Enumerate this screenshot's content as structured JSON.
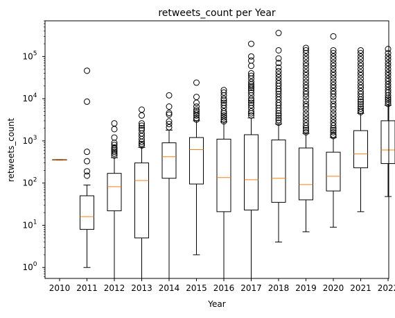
{
  "chart_data": {
    "type": "box",
    "title": "retweets_count per Year",
    "xlabel": "Year",
    "ylabel": "retweets_count",
    "yscale": "log",
    "ylim": [
      0.55,
      700000
    ],
    "y_ticks": [
      {
        "value": 1,
        "base": "10",
        "exp": "0"
      },
      {
        "value": 10,
        "base": "10",
        "exp": "1"
      },
      {
        "value": 100,
        "base": "10",
        "exp": "2"
      },
      {
        "value": 1000,
        "base": "10",
        "exp": "3"
      },
      {
        "value": 10000,
        "base": "10",
        "exp": "4"
      },
      {
        "value": 100000,
        "base": "10",
        "exp": "5"
      }
    ],
    "grid": false,
    "colors": {
      "box": "#000000",
      "median": "#ff7f0e",
      "flier": "#000000"
    },
    "categories": [
      "2010",
      "2011",
      "2012",
      "2013",
      "2014",
      "2015",
      "2016",
      "2017",
      "2018",
      "2019",
      "2020",
      "2021",
      "2022"
    ],
    "boxes": [
      {
        "year": "2010",
        "whislo": 350,
        "q1": 350,
        "med": 355,
        "q3": 360,
        "whishi": 360,
        "fliers": []
      },
      {
        "year": "2011",
        "whislo": 1,
        "q1": 8,
        "med": 16,
        "q3": 50,
        "whishi": 90,
        "fliers": [
          46000,
          8500,
          550,
          330,
          190,
          150
        ]
      },
      {
        "year": "2012",
        "whislo": 0.4,
        "q1": 22,
        "med": 82,
        "q3": 170,
        "whishi": 400,
        "fliers": [
          2600,
          1900,
          1200,
          900,
          800,
          700,
          650,
          600,
          550,
          500,
          450
        ]
      },
      {
        "year": "2013",
        "whislo": 0.4,
        "q1": 5,
        "med": 115,
        "q3": 300,
        "whishi": 700,
        "fliers": [
          5500,
          4000,
          2600,
          2300,
          2000,
          1800,
          1500,
          1300,
          1100,
          950,
          850,
          780
        ]
      },
      {
        "year": "2014",
        "whislo": 0.4,
        "q1": 130,
        "med": 420,
        "q3": 900,
        "whishi": 1800,
        "fliers": [
          12000,
          6500,
          4600,
          4200,
          2900,
          2500,
          2100
        ]
      },
      {
        "year": "2015",
        "whislo": 2,
        "q1": 95,
        "med": 620,
        "q3": 1200,
        "whishi": 3000,
        "fliers": [
          24000,
          11000,
          8000,
          6500,
          5500,
          5000,
          4500,
          4000,
          3500,
          3200
        ]
      },
      {
        "year": "2016",
        "whislo": 0.4,
        "q1": 21,
        "med": 135,
        "q3": 1100,
        "whishi": 2800,
        "fliers": [
          16000,
          14000,
          12000,
          10000,
          9000,
          8000,
          7000,
          6000,
          5000,
          4500,
          4000,
          3600,
          3200,
          2900
        ]
      },
      {
        "year": "2017",
        "whislo": 0.4,
        "q1": 23,
        "med": 120,
        "q3": 1400,
        "whishi": 3500,
        "fliers": [
          200000,
          100000,
          80000,
          60000,
          40000,
          35000,
          30000,
          25000,
          22000,
          20000,
          18000,
          16000,
          14000,
          12000,
          10000,
          9000,
          8000,
          7000,
          6000,
          5000,
          4500,
          4000
        ]
      },
      {
        "year": "2018",
        "whislo": 4,
        "q1": 35,
        "med": 130,
        "q3": 1050,
        "whishi": 2500,
        "fliers": [
          360000,
          140000,
          90000,
          70000,
          55000,
          45000,
          38000,
          32000,
          27000,
          23000,
          20000,
          17000,
          15000,
          13000,
          11000,
          9500,
          8000,
          7000,
          6000,
          5200,
          4500,
          4000,
          3500,
          3100,
          2700
        ]
      },
      {
        "year": "2019",
        "whislo": 7,
        "q1": 40,
        "med": 92,
        "q3": 680,
        "whishi": 1500,
        "fliers": [
          160000,
          140000,
          120000,
          100000,
          85000,
          70000,
          60000,
          50000,
          42000,
          36000,
          30000,
          25000,
          21000,
          18000,
          15000,
          13000,
          11000,
          9000,
          7500,
          6500,
          5500,
          4500,
          3800,
          3200,
          2700,
          2300,
          2000,
          1800,
          1600
        ]
      },
      {
        "year": "2020",
        "whislo": 9,
        "q1": 65,
        "med": 145,
        "q3": 540,
        "whishi": 1200,
        "fliers": [
          300000,
          140000,
          120000,
          100000,
          85000,
          70000,
          60000,
          50000,
          42000,
          36000,
          30000,
          25000,
          21000,
          18000,
          15000,
          13000,
          11000,
          9000,
          7500,
          6500,
          5500,
          4500,
          3800,
          3200,
          2700,
          2300,
          2000,
          1800,
          1600,
          1400,
          1300
        ]
      },
      {
        "year": "2021",
        "whislo": 21,
        "q1": 230,
        "med": 490,
        "q3": 1750,
        "whishi": 4500,
        "fliers": [
          140000,
          120000,
          100000,
          85000,
          70000,
          60000,
          50000,
          42000,
          36000,
          30000,
          25000,
          21000,
          18000,
          15000,
          13000,
          11000,
          9500,
          8500,
          7500,
          6500,
          5800,
          5200,
          4800
        ]
      },
      {
        "year": "2022",
        "whislo": 48,
        "q1": 290,
        "med": 610,
        "q3": 3000,
        "whishi": 7000,
        "fliers": [
          150000,
          120000,
          100000,
          85000,
          70000,
          60000,
          50000,
          42000,
          36000,
          30000,
          26000,
          22000,
          19000,
          16000,
          14000,
          12000,
          10500,
          9500,
          8500,
          7500
        ]
      }
    ]
  }
}
